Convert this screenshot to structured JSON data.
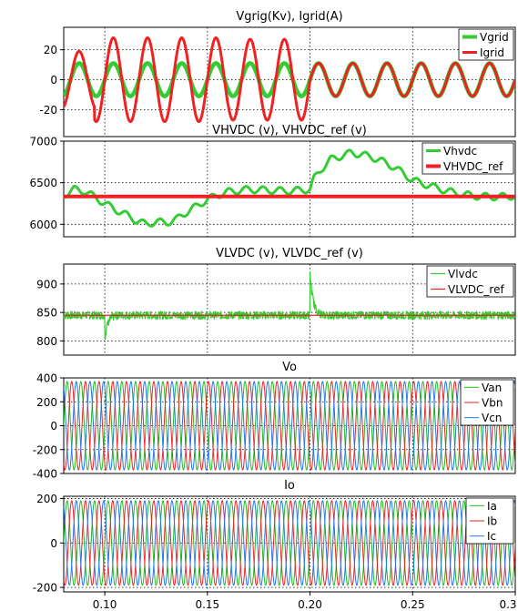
{
  "chart_data": [
    {
      "type": "line",
      "title": "Vgrig(Kv), Igrid(A)",
      "xlim": [
        0.08,
        0.3
      ],
      "ylim": [
        -38,
        35
      ],
      "yticks": [
        20,
        0,
        -20
      ],
      "grid": true,
      "legend_position": "top-right",
      "series": [
        {
          "name": "Vgrid",
          "color": "#33cc33",
          "width": 4.5,
          "signal": {
            "kind": "sine",
            "freq": 60,
            "segments": [
              [
                0.08,
                0.2,
                11,
                0
              ],
              [
                0.2,
                0.3,
                11,
                0
              ]
            ]
          }
        },
        {
          "name": "Igrid",
          "color": "#ee2222",
          "width": 3,
          "signal": {
            "kind": "sine",
            "freq": 60,
            "segments": [
              [
                0.08,
                0.095,
                19,
                0
              ],
              [
                0.095,
                0.16,
                28,
                0
              ],
              [
                0.16,
                0.2,
                27,
                0
              ],
              [
                0.2,
                0.3,
                11,
                0
              ]
            ]
          }
        }
      ]
    },
    {
      "type": "line",
      "title": "VHVDC (v), VHVDC_ref (v)",
      "xlim": [
        0.08,
        0.3
      ],
      "ylim": [
        5850,
        7000
      ],
      "yticks": [
        7000,
        6500,
        6000
      ],
      "grid": true,
      "legend_position": "top-right",
      "series": [
        {
          "name": "Vhvdc",
          "color": "#33cc33",
          "width": 3,
          "signal": {
            "kind": "points",
            "ripple": 40,
            "ripple_freq": 120,
            "x": [
              0.08,
              0.085,
              0.09,
              0.095,
              0.1,
              0.105,
              0.11,
              0.115,
              0.12,
              0.125,
              0.13,
              0.135,
              0.14,
              0.145,
              0.15,
              0.155,
              0.16,
              0.17,
              0.18,
              0.19,
              0.2,
              0.202,
              0.205,
              0.21,
              0.215,
              0.22,
              0.225,
              0.23,
              0.235,
              0.24,
              0.245,
              0.25,
              0.26,
              0.27,
              0.28,
              0.29,
              0.3
            ],
            "y": [
              6350,
              6420,
              6400,
              6330,
              6250,
              6180,
              6120,
              6050,
              6000,
              6030,
              6020,
              6060,
              6150,
              6220,
              6300,
              6350,
              6390,
              6420,
              6410,
              6400,
              6420,
              6550,
              6650,
              6780,
              6820,
              6860,
              6840,
              6810,
              6760,
              6700,
              6620,
              6530,
              6450,
              6380,
              6340,
              6330,
              6340
            ]
          }
        },
        {
          "name": "VHVDC_ref",
          "color": "#ee2222",
          "width": 4,
          "signal": {
            "kind": "const",
            "value": 6335
          }
        }
      ]
    },
    {
      "type": "line",
      "title": "VLVDC (v), VLVDC_ref (v)",
      "xlim": [
        0.08,
        0.3
      ],
      "ylim": [
        775,
        935
      ],
      "yticks": [
        900,
        850,
        800
      ],
      "grid": true,
      "legend_position": "top-right",
      "series": [
        {
          "name": "Vlvdc",
          "color": "#33cc33",
          "width": 1.2,
          "signal": {
            "kind": "noise",
            "base": 845,
            "amp": 7,
            "spikes": [
              [
                0.1,
                805,
                "down"
              ],
              [
                0.2,
                920,
                "up"
              ]
            ]
          }
        },
        {
          "name": "VLVDC_ref",
          "color": "#ee2222",
          "width": 1.2,
          "signal": {
            "kind": "const",
            "value": 845
          }
        }
      ]
    },
    {
      "type": "line",
      "title": "Vo",
      "xlim": [
        0.08,
        0.3
      ],
      "ylim": [
        -400,
        400
      ],
      "yticks": [
        400,
        200,
        0,
        -200,
        -400
      ],
      "grid": true,
      "legend_position": "top-right",
      "series": [
        {
          "name": "Van",
          "color": "#22bb22",
          "width": 1,
          "signal": {
            "kind": "sine",
            "freq": 150,
            "segments": [
              [
                0.08,
                0.3,
                370,
                0
              ]
            ]
          }
        },
        {
          "name": "Vbn",
          "color": "#ee2222",
          "width": 1,
          "signal": {
            "kind": "sine",
            "freq": 150,
            "segments": [
              [
                0.08,
                0.3,
                370,
                -120
              ]
            ]
          }
        },
        {
          "name": "Vcn",
          "color": "#2277ee",
          "width": 1,
          "signal": {
            "kind": "sine",
            "freq": 150,
            "segments": [
              [
                0.08,
                0.3,
                370,
                120
              ]
            ]
          }
        }
      ]
    },
    {
      "type": "line",
      "title": "Io",
      "xlim": [
        0.08,
        0.3
      ],
      "ylim": [
        -220,
        210
      ],
      "yticks": [
        200,
        0,
        -200
      ],
      "xticks": [
        0.1,
        0.15,
        0.2,
        0.25,
        0.3
      ],
      "xticklabels": [
        "0.10",
        "0.15",
        "0.20",
        "0.25",
        "0.3"
      ],
      "grid": true,
      "legend_position": "top-right",
      "series": [
        {
          "name": "Ia",
          "color": "#22bb22",
          "width": 1,
          "signal": {
            "kind": "sine",
            "freq": 150,
            "segments": [
              [
                0.08,
                0.3,
                190,
                0
              ]
            ]
          }
        },
        {
          "name": "Ib",
          "color": "#ee2222",
          "width": 1,
          "signal": {
            "kind": "sine",
            "freq": 150,
            "segments": [
              [
                0.08,
                0.3,
                190,
                -120
              ]
            ]
          }
        },
        {
          "name": "Ic",
          "color": "#2277ee",
          "width": 1,
          "signal": {
            "kind": "sine",
            "freq": 150,
            "segments": [
              [
                0.08,
                0.3,
                190,
                120
              ]
            ]
          }
        }
      ]
    }
  ]
}
